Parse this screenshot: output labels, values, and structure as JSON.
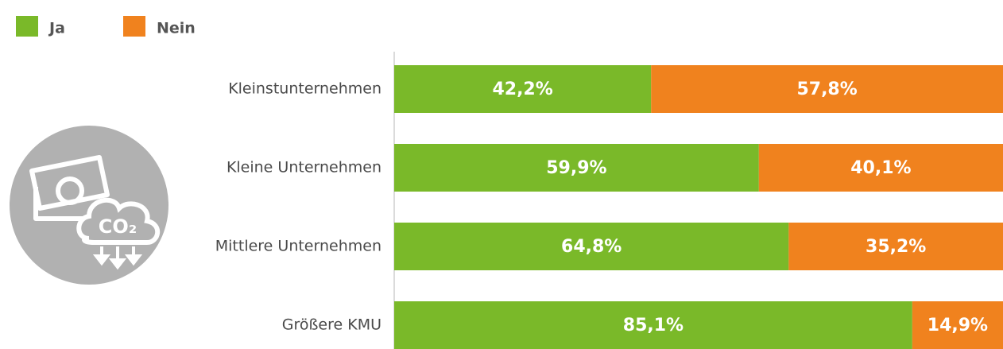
{
  "chart_data": {
    "type": "stacked_barh",
    "categories": [
      "Kleinstunternehmen",
      "Kleine Unternehmen",
      "Mittlere Unternehmen",
      "Größere KMU"
    ],
    "series": [
      {
        "name": "Ja",
        "color": "#7ab929",
        "values": [
          42.2,
          59.9,
          64.8,
          85.1
        ],
        "value_labels": [
          "42,2%",
          "59,9%",
          "64,8%",
          "85,1%"
        ]
      },
      {
        "name": "Nein",
        "color": "#f0821e",
        "values": [
          57.8,
          40.1,
          35.2,
          14.9
        ],
        "value_labels": [
          "57,8%",
          "40,1%",
          "35,2%",
          "14,9%"
        ]
      }
    ],
    "xlim": [
      0,
      100
    ],
    "icon_label": "CO₂"
  }
}
